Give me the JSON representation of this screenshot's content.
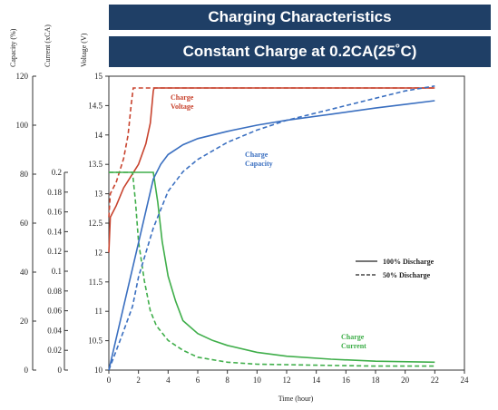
{
  "header": {
    "title": "Charging Characteristics",
    "subtitle": "Constant Charge at 0.2CA(25˚C)"
  },
  "chart_data": {
    "type": "line",
    "xlabel": "Time (hour)",
    "xlim": [
      0,
      24
    ],
    "xticks": [
      0,
      2,
      4,
      6,
      8,
      10,
      12,
      14,
      16,
      18,
      20,
      22,
      24
    ],
    "axes": {
      "voltage": {
        "label": "Voltage (V)",
        "lim": [
          10,
          15
        ],
        "ticks": [
          "10",
          "10.5",
          "11",
          "11.5",
          "12",
          "12.5",
          "13",
          "13.5",
          "14",
          "14.5",
          "15"
        ]
      },
      "current": {
        "label": "Current (xCA)",
        "lim": [
          0,
          0.2
        ],
        "ticks": [
          "0",
          "0.02",
          "0.04",
          "0.06",
          "0.08",
          "0.1",
          "0.12",
          "0.14",
          "0.16",
          "0.18",
          "0.2"
        ]
      },
      "capacity": {
        "label": "Capacity (%)",
        "lim": [
          0,
          120
        ],
        "ticks": [
          "0",
          "20",
          "40",
          "60",
          "80",
          "100",
          "120"
        ]
      }
    },
    "legend": {
      "placement": "right",
      "items": [
        "100% Discharge",
        "50% Discharge"
      ]
    },
    "annotations": [
      {
        "text": "Charge",
        "sub": "Voltage",
        "color": "#c8432e"
      },
      {
        "text": "Charge",
        "sub": "Capacity",
        "color": "#3a6fc0"
      },
      {
        "text": "Charge",
        "sub": "Current",
        "color": "#3fae4a"
      }
    ],
    "colors": {
      "voltage": "#c8432e",
      "capacity": "#3a6fc0",
      "current": "#3fae4a"
    },
    "series": [
      {
        "quantity": "voltage",
        "axis": "voltage",
        "discharge": "100%",
        "style": "solid",
        "x": [
          0,
          0.1,
          0.5,
          1.0,
          1.5,
          2.0,
          2.5,
          2.8,
          3.0,
          3.05,
          22
        ],
        "y": [
          12.0,
          12.6,
          12.8,
          13.1,
          13.3,
          13.5,
          13.85,
          14.2,
          14.75,
          14.8,
          14.8
        ]
      },
      {
        "quantity": "voltage",
        "axis": "voltage",
        "discharge": "50%",
        "style": "dashed",
        "x": [
          0,
          0.1,
          0.5,
          1.0,
          1.3,
          1.5,
          1.65,
          22
        ],
        "y": [
          12.6,
          13.0,
          13.2,
          13.6,
          14.0,
          14.5,
          14.8,
          14.8
        ]
      },
      {
        "quantity": "current",
        "axis": "current",
        "discharge": "100%",
        "style": "solid",
        "x": [
          0,
          3.0,
          3.3,
          3.6,
          4.0,
          4.5,
          5.0,
          6.0,
          7.0,
          8.0,
          10.0,
          12.0,
          15.0,
          18.0,
          22.0
        ],
        "y": [
          0.2,
          0.2,
          0.17,
          0.13,
          0.095,
          0.07,
          0.05,
          0.037,
          0.03,
          0.025,
          0.018,
          0.014,
          0.011,
          0.009,
          0.008
        ]
      },
      {
        "quantity": "current",
        "axis": "current",
        "discharge": "50%",
        "style": "dashed",
        "x": [
          0,
          1.6,
          1.8,
          2.0,
          2.4,
          2.8,
          3.2,
          4.0,
          5.0,
          6.0,
          8.0,
          10.0,
          14.0,
          18.0,
          22.0
        ],
        "y": [
          0.2,
          0.2,
          0.17,
          0.13,
          0.09,
          0.06,
          0.045,
          0.03,
          0.02,
          0.013,
          0.008,
          0.006,
          0.005,
          0.004,
          0.004
        ]
      },
      {
        "quantity": "capacity",
        "axis": "capacity",
        "discharge": "100%",
        "style": "solid",
        "x": [
          0,
          1.0,
          2.0,
          3.0,
          3.5,
          4.0,
          5.0,
          6.0,
          8.0,
          10.0,
          12.0,
          15.0,
          18.0,
          20.0,
          22.0
        ],
        "y": [
          0,
          26,
          52,
          78,
          84,
          88,
          92,
          94.5,
          97.5,
          100,
          102,
          104.5,
          107,
          108.5,
          110
        ]
      },
      {
        "quantity": "capacity",
        "axis": "capacity",
        "discharge": "50%",
        "style": "dashed",
        "x": [
          0,
          0.5,
          1.0,
          1.6,
          2.0,
          3.0,
          4.0,
          5.0,
          6.0,
          8.0,
          10.0,
          12.0,
          14.0,
          16.0,
          18.0,
          20.0,
          22.0
        ],
        "y": [
          0,
          8,
          16,
          26,
          38,
          58,
          73,
          81,
          86,
          93,
          98,
          102,
          105,
          108,
          111,
          114,
          116
        ]
      }
    ]
  }
}
